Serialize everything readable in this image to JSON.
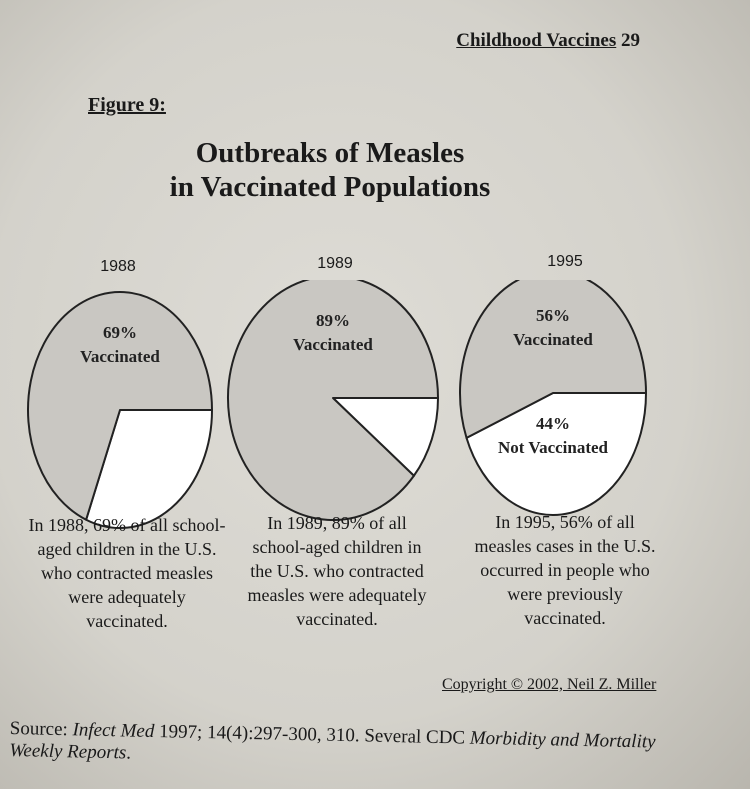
{
  "header": {
    "running_title": "Childhood Vaccines",
    "page_number": "29"
  },
  "figure_label": "Figure 9:",
  "chart_data": {
    "type": "pie",
    "title": [
      "Outbreaks of Measles",
      "in Vaccinated Populations"
    ],
    "pies": [
      {
        "label": "1988",
        "slices": [
          {
            "name": "Vaccinated",
            "value": 69,
            "label": [
              "69%",
              "Vaccinated"
            ],
            "color": "#c9c7c2"
          },
          {
            "name": "Not Vaccinated",
            "value": 31,
            "label": [],
            "color": "#ffffff"
          }
        ],
        "caption": [
          "In 1988, 69% of all school-",
          "aged children in the U.S.",
          "who contracted measles",
          "were adequately",
          "vaccinated."
        ]
      },
      {
        "label": "1989",
        "slices": [
          {
            "name": "Vaccinated",
            "value": 89,
            "label": [
              "89%",
              "Vaccinated"
            ],
            "color": "#c9c7c2"
          },
          {
            "name": "Not Vaccinated",
            "value": 11,
            "label": [],
            "color": "#ffffff"
          }
        ],
        "caption": [
          "In 1989, 89% of all",
          "school-aged children in",
          "the U.S. who contracted",
          "measles were adequately",
          "vaccinated."
        ]
      },
      {
        "label": "1995",
        "slices": [
          {
            "name": "Vaccinated",
            "value": 56,
            "label": [
              "56%",
              "Vaccinated"
            ],
            "color": "#c9c7c2"
          },
          {
            "name": "Not Vaccinated",
            "value": 44,
            "label": [
              "44%",
              "Not Vaccinated"
            ],
            "color": "#ffffff"
          }
        ],
        "caption": [
          "In 1995, 56% of all",
          "measles cases in the U.S.",
          "occurred in people who",
          "were previously",
          "vaccinated."
        ]
      }
    ]
  },
  "copyright": "Copyright © 2002, Neil Z. Miller",
  "source": {
    "prefix": "Source: ",
    "journal": "Infect Med",
    "citation": " 1997; 14(4):297-300, 310. Several CDC ",
    "report": "Morbidity and Mortality Weekly Reports",
    "suffix": "."
  }
}
